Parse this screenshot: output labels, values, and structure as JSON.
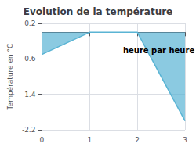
{
  "chart_data": {
    "type": "area",
    "title": "Evolution de la température",
    "ylabel": "Température en °C",
    "x": [
      0,
      1,
      2,
      3
    ],
    "values": [
      -0.5,
      0.0,
      0.0,
      -2.0
    ],
    "color": "#5ab4d4",
    "xlim": [
      0,
      3
    ],
    "xticks": [
      0,
      1,
      2,
      3
    ],
    "ylim": [
      -2.2,
      0.2
    ],
    "yticks": [
      -2.2,
      -1.4,
      -0.6,
      0.2
    ],
    "grid": true,
    "annotations": [
      {
        "text": "heure par heure",
        "x": 1.7,
        "y": -0.32
      }
    ]
  }
}
